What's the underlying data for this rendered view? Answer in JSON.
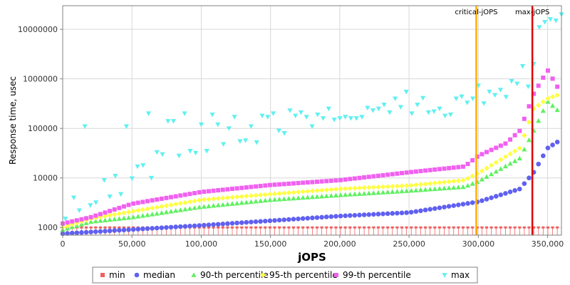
{
  "chart_data": {
    "type": "scatter",
    "xlabel": "jOPS",
    "ylabel": "Response time, usec",
    "x_scale": "linear",
    "y_scale": "log",
    "xlim": [
      0,
      360000
    ],
    "ylim": [
      700,
      30000000
    ],
    "grid": true,
    "legend_position": "bottom",
    "x_ticks": [
      {
        "value": 0,
        "label": "0"
      },
      {
        "value": 50000,
        "label": "50,000"
      },
      {
        "value": 100000,
        "label": "100,000"
      },
      {
        "value": 150000,
        "label": "150,000"
      },
      {
        "value": 200000,
        "label": "200,000"
      },
      {
        "value": 250000,
        "label": "250,000"
      },
      {
        "value": 300000,
        "label": "300,000"
      },
      {
        "value": 350000,
        "label": "350,000"
      }
    ],
    "y_ticks": [
      {
        "value": 1000,
        "label": "1000"
      },
      {
        "value": 10000,
        "label": "10000"
      },
      {
        "value": 100000,
        "label": "100000"
      },
      {
        "value": 1000000,
        "label": "1000000"
      },
      {
        "value": 10000000,
        "label": "10000000"
      }
    ],
    "markers": [
      {
        "name": "critical-jOPS",
        "x": 298500,
        "color": "#ffb000"
      },
      {
        "name": "max-jOPS",
        "x": 339000,
        "color": "#dd0000"
      }
    ],
    "series": [
      {
        "name": "min",
        "shape": "square",
        "color": "#f06060",
        "x_start": 0,
        "x_step": 3400,
        "count": 106,
        "y_constant": 1000
      },
      {
        "name": "median",
        "shape": "circle",
        "color": "#6060f0",
        "x": [
          0,
          100000,
          200000,
          250000,
          300000,
          330000,
          340000,
          350000,
          360000
        ],
        "y": [
          750,
          1100,
          1700,
          2000,
          3300,
          6000,
          13000,
          40000,
          60000
        ]
      },
      {
        "name": "90-th percentile",
        "shape": "triangle-up",
        "color": "#60f060",
        "x": [
          0,
          20000,
          50000,
          100000,
          150000,
          200000,
          250000,
          290000,
          300000,
          330000,
          340000,
          350000,
          360000
        ],
        "y": [
          900,
          1300,
          1600,
          2600,
          3600,
          4500,
          5500,
          6600,
          8500,
          25000,
          90000,
          350000,
          200000
        ]
      },
      {
        "name": "95-th percentile",
        "shape": "diamond",
        "color": "#ffff40",
        "x": [
          0,
          20000,
          50000,
          100000,
          150000,
          200000,
          250000,
          290000,
          300000,
          330000,
          340000,
          350000,
          360000
        ],
        "y": [
          1000,
          1500,
          2100,
          3600,
          4700,
          6000,
          7000,
          9000,
          12500,
          40000,
          250000,
          400000,
          500000
        ]
      },
      {
        "name": "99-th percentile",
        "shape": "square",
        "color": "#f060f0",
        "x": [
          0,
          20000,
          50000,
          100000,
          150000,
          200000,
          250000,
          290000,
          300000,
          320000,
          330000,
          340000,
          350000,
          360000
        ],
        "y": [
          1200,
          1600,
          3000,
          5200,
          7200,
          9000,
          13000,
          17000,
          28000,
          50000,
          90000,
          500000,
          1500000,
          500000
        ]
      },
      {
        "name": "max",
        "shape": "triangle-down",
        "color": "#60f0f0",
        "x": [
          2000,
          8000,
          12000,
          16000,
          20000,
          24000,
          30000,
          34000,
          38000,
          42000,
          46000,
          50000,
          54000,
          58000,
          62000,
          64000,
          68000,
          72000,
          76000,
          80000,
          84000,
          88000,
          92000,
          96000,
          100000,
          104000,
          108000,
          112000,
          116000,
          120000,
          124000,
          128000,
          132000,
          136000,
          140000,
          144000,
          148000,
          152000,
          156000,
          160000,
          164000,
          168000,
          172000,
          176000,
          180000,
          184000,
          188000,
          192000,
          196000,
          200000,
          204000,
          208000,
          212000,
          216000,
          220000,
          224000,
          228000,
          232000,
          236000,
          240000,
          244000,
          248000,
          252000,
          256000,
          260000,
          264000,
          268000,
          272000,
          276000,
          280000,
          284000,
          288000,
          292000,
          296000,
          300000,
          304000,
          308000,
          312000,
          316000,
          320000,
          324000,
          328000,
          332000,
          336000,
          340000,
          344000,
          348000,
          352000,
          356000,
          360000
        ],
        "y": [
          1500,
          4000,
          2200,
          110000,
          2800,
          3200,
          9000,
          4200,
          11000,
          4700,
          110000,
          9800,
          17000,
          18000,
          200000,
          10000,
          33000,
          30000,
          140000,
          140000,
          28000,
          200000,
          35000,
          32000,
          120000,
          35000,
          190000,
          120000,
          48000,
          100000,
          170000,
          55000,
          57000,
          110000,
          52000,
          180000,
          170000,
          200000,
          90000,
          80000,
          230000,
          180000,
          210000,
          170000,
          110000,
          190000,
          160000,
          250000,
          150000,
          160000,
          170000,
          160000,
          160000,
          170000,
          260000,
          230000,
          250000,
          300000,
          210000,
          400000,
          270000,
          550000,
          200000,
          300000,
          410000,
          210000,
          220000,
          250000,
          180000,
          190000,
          400000,
          440000,
          330000,
          400000,
          730000,
          320000,
          550000,
          470000,
          600000,
          430000,
          900000,
          800000,
          1800000,
          700000,
          2000000,
          11000000,
          14000000,
          16000000,
          15000000,
          20000000
        ]
      }
    ]
  }
}
